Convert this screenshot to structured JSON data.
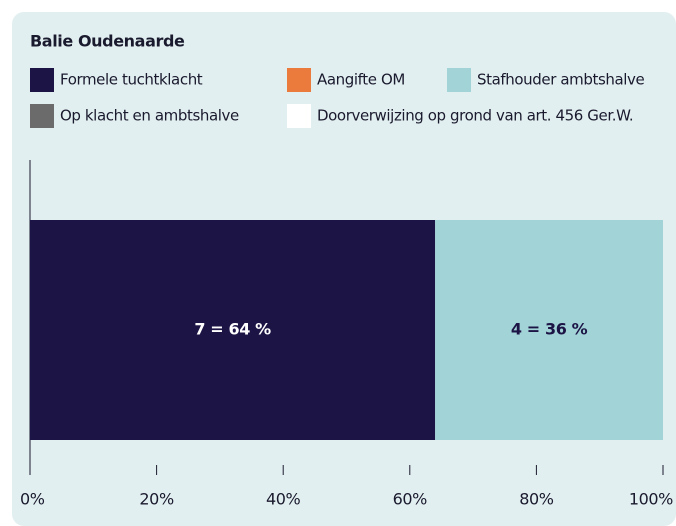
{
  "chart_data": {
    "type": "stacked_bar_horizontal",
    "title": "Balie Oudenaarde",
    "categories": [
      null
    ],
    "series": [
      {
        "name": "Formele tuchtklacht",
        "color": "#1c1445",
        "values": [
          64
        ],
        "value_labels": [
          "7 = 64 %"
        ]
      },
      {
        "name": "Aangifte OM",
        "color": "#ea7b3c",
        "values": [
          0
        ]
      },
      {
        "name": "Stafhouder ambtshalve",
        "color": "#a2d3d7",
        "values": [
          36
        ],
        "value_labels": [
          "4 = 36 %"
        ]
      },
      {
        "name": "Op klacht en ambtshalve",
        "color": "#6b6b6b",
        "values": [
          0
        ]
      },
      {
        "name": "Doorverwijzing op grond van art. 456 Ger.W.",
        "color": "#ffffff",
        "values": [
          0
        ]
      }
    ],
    "xlim": [
      0,
      100
    ],
    "xticks": [
      {
        "value": 0,
        "label": "0%"
      },
      {
        "value": 20,
        "label": "20%"
      },
      {
        "value": 40,
        "label": "40%"
      },
      {
        "value": 60,
        "label": "60%"
      },
      {
        "value": 80,
        "label": "80%"
      },
      {
        "value": 100,
        "label": "100%"
      }
    ],
    "legend": "top"
  }
}
